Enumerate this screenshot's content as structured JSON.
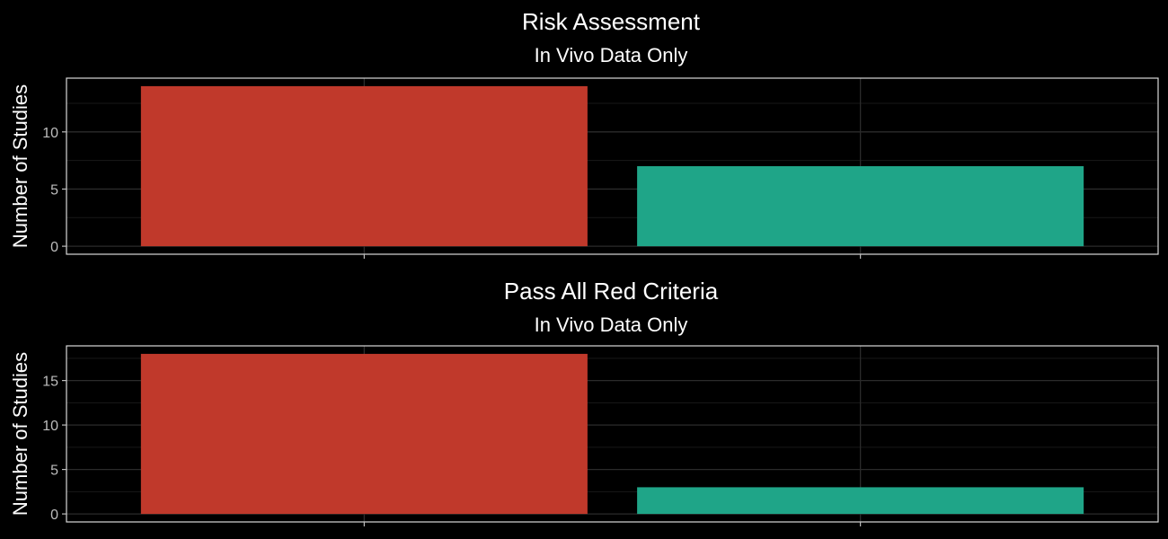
{
  "chart_data": [
    {
      "type": "bar",
      "title": "Risk Assessment",
      "subtitle": "In Vivo Data Only",
      "xlabel": "",
      "ylabel": "Number of Studies",
      "categories": [
        "",
        ""
      ],
      "values": [
        14,
        7
      ],
      "colors": [
        "#c0392b",
        "#1fa588"
      ],
      "ylim": [
        -0.7,
        14.7
      ],
      "yticks": [
        0,
        5,
        10
      ],
      "grid": true
    },
    {
      "type": "bar",
      "title": "Pass All Red Criteria",
      "subtitle": "In Vivo Data Only",
      "xlabel": "",
      "ylabel": "Number of Studies",
      "categories": [
        "",
        ""
      ],
      "values": [
        18,
        3
      ],
      "colors": [
        "#c0392b",
        "#1fa588"
      ],
      "ylim": [
        -0.9,
        18.9
      ],
      "yticks": [
        0,
        5,
        10,
        15
      ],
      "grid": true
    }
  ],
  "theme": {
    "background": "#000000",
    "panel_border": "#d9d9d9",
    "major_grid": "#2b2b2b",
    "minor_grid": "#181818"
  }
}
